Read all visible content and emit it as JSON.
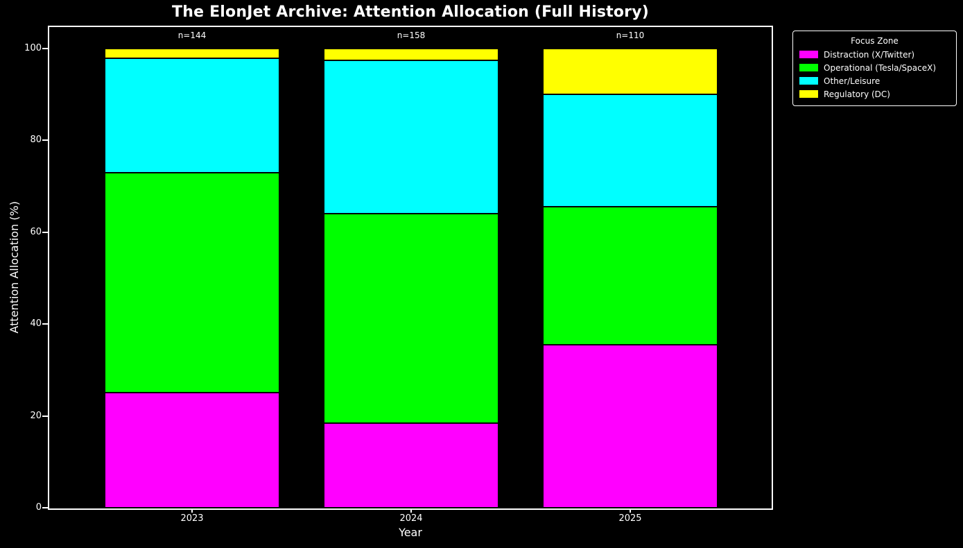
{
  "chart_data": {
    "type": "bar",
    "stacked": true,
    "title": "The ElonJet Archive: Attention Allocation (Full History)",
    "xlabel": "Year",
    "ylabel": "Attention Allocation (%)",
    "ylim": [
      0,
      100
    ],
    "yticks": [
      0,
      20,
      40,
      60,
      80,
      100
    ],
    "categories": [
      "2023",
      "2024",
      "2025"
    ],
    "bar_annotations": [
      "n=144",
      "n=158",
      "n=110"
    ],
    "grid": false,
    "background_color": "#000000",
    "text_color": "#ffffff",
    "legend": {
      "title": "Focus Zone",
      "position": "outside-upper-right"
    },
    "series": [
      {
        "name": "Distraction (X/Twitter)",
        "color": "#ff00ff",
        "values": [
          25.0,
          18.4,
          35.5
        ]
      },
      {
        "name": "Operational (Tesla/SpaceX)",
        "color": "#00ff00",
        "values": [
          47.9,
          45.6,
          30.0
        ]
      },
      {
        "name": "Other/Leisure",
        "color": "#00ffff",
        "values": [
          25.0,
          33.5,
          24.5
        ]
      },
      {
        "name": "Regulatory (DC)",
        "color": "#ffff00",
        "values": [
          2.1,
          2.5,
          10.0
        ]
      }
    ]
  }
}
